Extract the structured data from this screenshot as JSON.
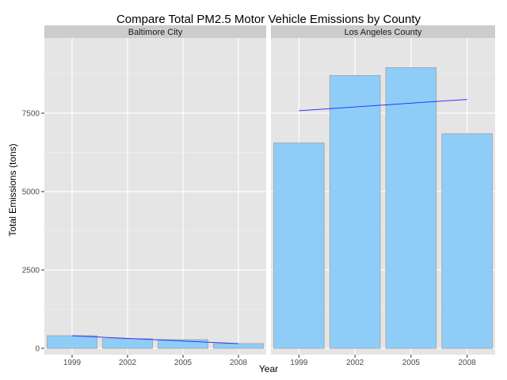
{
  "chart_data": {
    "type": "bar",
    "title": "Compare Total PM2.5 Motor Vehicle Emissions by County",
    "xlabel": "Year",
    "ylabel": "Total Emissions (tons)",
    "ylim": [
      0,
      10000
    ],
    "yticks": [
      0,
      2500,
      5000,
      7500
    ],
    "categories": [
      "1999",
      "2002",
      "2005",
      "2008"
    ],
    "grid": true,
    "legend": "none",
    "colors": {
      "bar_fill": "#8ecdf8",
      "bar_stroke": "#a0a0a0",
      "trend_line": "#3333ff",
      "panel_bg": "#e5e5e5",
      "strip_bg": "#cccccc",
      "grid_major": "#ffffff",
      "grid_minor": "#f2f2f2"
    },
    "facets": [
      {
        "label": "Baltimore City",
        "values": [
          403.8,
          307.2,
          277.6,
          150.2
        ],
        "trend": [
          400,
          150
        ]
      },
      {
        "label": "Los Angeles County",
        "values": [
          6551,
          8705,
          8955,
          6845
        ],
        "trend": [
          7580,
          7940
        ]
      }
    ]
  }
}
